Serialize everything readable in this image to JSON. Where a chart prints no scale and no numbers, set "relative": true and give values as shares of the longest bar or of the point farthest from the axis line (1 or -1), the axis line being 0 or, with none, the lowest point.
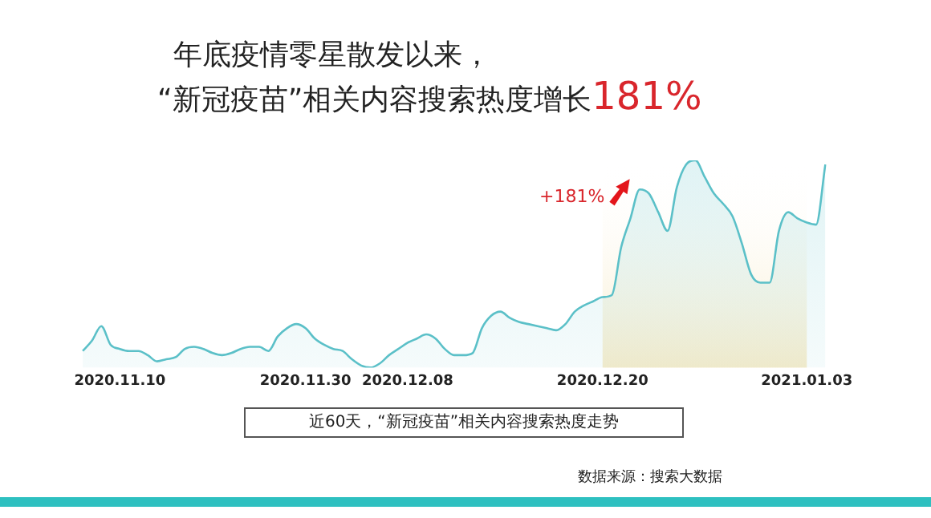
{
  "chart_data": {
    "type": "area",
    "title": "年底疫情零星散发以来，",
    "subtitle": "“新冠疫苗”相关内容搜索热度增长181%",
    "xlabel": "近60天，“新冠疫苗”相关内容搜索热度走势",
    "annotations": [
      "+181%",
      "数据来源：搜索大数据"
    ],
    "relative": true,
    "categories": [
      null,
      null,
      null,
      null,
      "2020.11.10",
      null,
      null,
      null,
      null,
      null,
      null,
      null,
      null,
      null,
      null,
      null,
      null,
      null,
      null,
      null,
      null,
      null,
      null,
      null,
      "2020.11.30",
      null,
      null,
      null,
      null,
      null,
      null,
      null,
      null,
      null,
      null,
      "2020.12.08",
      null,
      null,
      null,
      null,
      null,
      null,
      null,
      null,
      null,
      null,
      null,
      null,
      null,
      null,
      null,
      null,
      null,
      null,
      null,
      null,
      "2020.12.20",
      null,
      null,
      null,
      null,
      null,
      null,
      null,
      null,
      null,
      null,
      null,
      null,
      null,
      null,
      null,
      null,
      null,
      null,
      null,
      null,
      null,
      "2021.01.03",
      null,
      null
    ],
    "series": [
      {
        "color": "#5bc0c8",
        "values": [
          0.08,
          0.13,
          0.2,
          0.11,
          0.09,
          0.08,
          0.08,
          0.06,
          0.03,
          0.04,
          0.05,
          0.09,
          0.1,
          0.09,
          0.07,
          0.06,
          0.07,
          0.09,
          0.1,
          0.1,
          0.08,
          0.15,
          0.19,
          0.21,
          0.19,
          0.14,
          0.11,
          0.09,
          0.08,
          0.04,
          0.01,
          0,
          0.02,
          0.06,
          0.09,
          0.12,
          0.14,
          0.16,
          0.14,
          0.09,
          0.06,
          0.06,
          0.07,
          0.19,
          0.25,
          0.27,
          0.24,
          0.22,
          0.21,
          0.2,
          0.19,
          0.18,
          0.21,
          0.27,
          0.3,
          0.32,
          0.34,
          0.35,
          0.58,
          0.72,
          0.86,
          0.84,
          0.75,
          0.66,
          0.87,
          0.98,
          1,
          0.92,
          0.84,
          0.79,
          0.73,
          0.6,
          0.45,
          0.41,
          0.41,
          0.66,
          0.75,
          0.72,
          0.7,
          0.69,
          0.98
        ]
      }
    ],
    "bands": [
      {
        "axis": "x",
        "from": "2020.12.20",
        "to": "2021.01.03",
        "color": "#f8eccb"
      }
    ],
    "grid": false,
    "legend": false,
    "marker": "none",
    "line_style": "solid"
  }
}
